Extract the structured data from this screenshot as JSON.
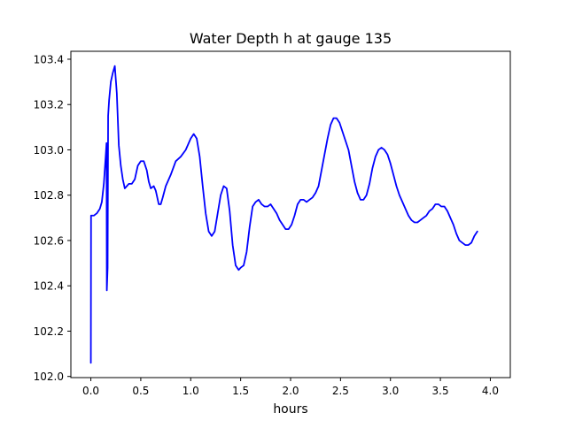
{
  "chart_data": {
    "type": "line",
    "title": "Water Depth h at gauge 135",
    "xlabel": "hours",
    "ylabel": "",
    "xlim": [
      -0.2,
      4.2
    ],
    "ylim": [
      101.995,
      103.435
    ],
    "xticks": [
      0.0,
      0.5,
      1.0,
      1.5,
      2.0,
      2.5,
      3.0,
      3.5,
      4.0
    ],
    "xtick_labels": [
      "0.0",
      "0.5",
      "1.0",
      "1.5",
      "2.0",
      "2.5",
      "3.0",
      "3.5",
      "4.0"
    ],
    "yticks": [
      102.0,
      102.2,
      102.4,
      102.6,
      102.8,
      103.0,
      103.2,
      103.4
    ],
    "ytick_labels": [
      "102.0",
      "102.2",
      "102.4",
      "102.6",
      "102.8",
      "103.0",
      "103.2",
      "103.4"
    ],
    "grid": false,
    "legend": "none",
    "series": [
      {
        "color": "#0000ff",
        "points": [
          [
            0.0,
            102.06
          ],
          [
            0.002,
            102.71
          ],
          [
            0.03,
            102.71
          ],
          [
            0.06,
            102.72
          ],
          [
            0.09,
            102.74
          ],
          [
            0.11,
            102.77
          ],
          [
            0.13,
            102.85
          ],
          [
            0.15,
            102.98
          ],
          [
            0.157,
            103.03
          ],
          [
            0.16,
            102.38
          ],
          [
            0.168,
            102.48
          ],
          [
            0.173,
            103.15
          ],
          [
            0.183,
            103.22
          ],
          [
            0.2,
            103.3
          ],
          [
            0.22,
            103.34
          ],
          [
            0.24,
            103.37
          ],
          [
            0.26,
            103.25
          ],
          [
            0.28,
            103.02
          ],
          [
            0.3,
            102.93
          ],
          [
            0.32,
            102.87
          ],
          [
            0.34,
            102.83
          ],
          [
            0.36,
            102.84
          ],
          [
            0.38,
            102.85
          ],
          [
            0.41,
            102.85
          ],
          [
            0.44,
            102.87
          ],
          [
            0.47,
            102.93
          ],
          [
            0.5,
            102.95
          ],
          [
            0.53,
            102.95
          ],
          [
            0.56,
            102.91
          ],
          [
            0.58,
            102.86
          ],
          [
            0.6,
            102.83
          ],
          [
            0.63,
            102.84
          ],
          [
            0.65,
            102.82
          ],
          [
            0.68,
            102.76
          ],
          [
            0.7,
            102.76
          ],
          [
            0.72,
            102.79
          ],
          [
            0.75,
            102.84
          ],
          [
            0.8,
            102.89
          ],
          [
            0.85,
            102.95
          ],
          [
            0.9,
            102.97
          ],
          [
            0.95,
            103.0
          ],
          [
            1.0,
            103.05
          ],
          [
            1.03,
            103.07
          ],
          [
            1.06,
            103.05
          ],
          [
            1.09,
            102.97
          ],
          [
            1.12,
            102.84
          ],
          [
            1.15,
            102.72
          ],
          [
            1.18,
            102.64
          ],
          [
            1.21,
            102.62
          ],
          [
            1.24,
            102.64
          ],
          [
            1.27,
            102.72
          ],
          [
            1.3,
            102.8
          ],
          [
            1.33,
            102.84
          ],
          [
            1.36,
            102.83
          ],
          [
            1.39,
            102.73
          ],
          [
            1.42,
            102.58
          ],
          [
            1.45,
            102.49
          ],
          [
            1.48,
            102.47
          ],
          [
            1.5,
            102.48
          ],
          [
            1.53,
            102.49
          ],
          [
            1.56,
            102.55
          ],
          [
            1.59,
            102.66
          ],
          [
            1.62,
            102.75
          ],
          [
            1.65,
            102.77
          ],
          [
            1.68,
            102.78
          ],
          [
            1.71,
            102.76
          ],
          [
            1.74,
            102.75
          ],
          [
            1.77,
            102.75
          ],
          [
            1.8,
            102.76
          ],
          [
            1.83,
            102.74
          ],
          [
            1.86,
            102.72
          ],
          [
            1.89,
            102.69
          ],
          [
            1.92,
            102.67
          ],
          [
            1.95,
            102.65
          ],
          [
            1.98,
            102.65
          ],
          [
            2.01,
            102.67
          ],
          [
            2.04,
            102.71
          ],
          [
            2.07,
            102.76
          ],
          [
            2.1,
            102.78
          ],
          [
            2.13,
            102.78
          ],
          [
            2.16,
            102.77
          ],
          [
            2.19,
            102.78
          ],
          [
            2.22,
            102.79
          ],
          [
            2.25,
            102.81
          ],
          [
            2.28,
            102.84
          ],
          [
            2.31,
            102.91
          ],
          [
            2.34,
            102.98
          ],
          [
            2.37,
            103.05
          ],
          [
            2.4,
            103.11
          ],
          [
            2.43,
            103.14
          ],
          [
            2.46,
            103.14
          ],
          [
            2.49,
            103.12
          ],
          [
            2.52,
            103.08
          ],
          [
            2.55,
            103.04
          ],
          [
            2.58,
            103.0
          ],
          [
            2.61,
            102.93
          ],
          [
            2.64,
            102.86
          ],
          [
            2.67,
            102.81
          ],
          [
            2.7,
            102.78
          ],
          [
            2.73,
            102.78
          ],
          [
            2.76,
            102.8
          ],
          [
            2.79,
            102.85
          ],
          [
            2.82,
            102.92
          ],
          [
            2.85,
            102.97
          ],
          [
            2.88,
            103.0
          ],
          [
            2.91,
            103.01
          ],
          [
            2.94,
            103.0
          ],
          [
            2.97,
            102.98
          ],
          [
            3.0,
            102.94
          ],
          [
            3.03,
            102.89
          ],
          [
            3.06,
            102.84
          ],
          [
            3.09,
            102.8
          ],
          [
            3.12,
            102.77
          ],
          [
            3.15,
            102.74
          ],
          [
            3.18,
            102.71
          ],
          [
            3.21,
            102.69
          ],
          [
            3.24,
            102.68
          ],
          [
            3.27,
            102.68
          ],
          [
            3.3,
            102.69
          ],
          [
            3.33,
            102.7
          ],
          [
            3.36,
            102.71
          ],
          [
            3.39,
            102.73
          ],
          [
            3.42,
            102.74
          ],
          [
            3.45,
            102.76
          ],
          [
            3.48,
            102.76
          ],
          [
            3.51,
            102.75
          ],
          [
            3.54,
            102.75
          ],
          [
            3.57,
            102.73
          ],
          [
            3.6,
            102.7
          ],
          [
            3.63,
            102.67
          ],
          [
            3.66,
            102.63
          ],
          [
            3.69,
            102.6
          ],
          [
            3.72,
            102.59
          ],
          [
            3.75,
            102.58
          ],
          [
            3.78,
            102.58
          ],
          [
            3.81,
            102.59
          ],
          [
            3.84,
            102.62
          ],
          [
            3.87,
            102.64
          ]
        ]
      }
    ]
  }
}
